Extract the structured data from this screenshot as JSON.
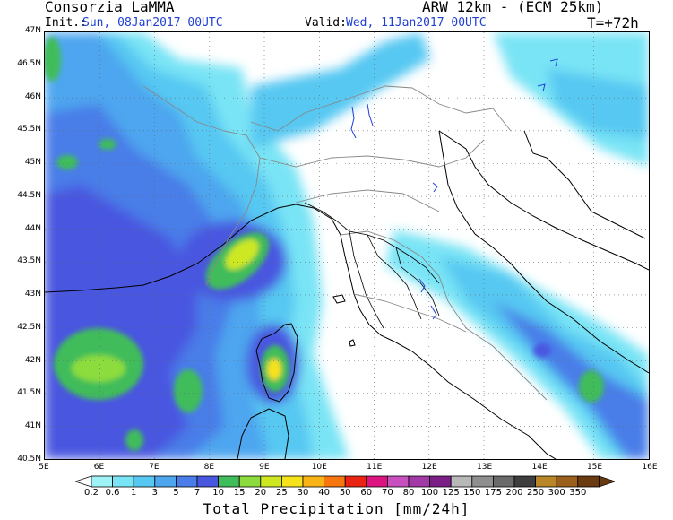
{
  "header": {
    "producer": "Consorzia LaMMA",
    "model": "ARW 12km - (ECM 25km)",
    "init_label": "Init.:",
    "init_value": "Sun, 08Jan2017 00UTC",
    "valid_label": "Valid:",
    "valid_value": "Wed, 11Jan2017 00UTC",
    "forecast_step": "T=+72h"
  },
  "map": {
    "lat_labels": [
      "47N",
      "46.5N",
      "46N",
      "45.5N",
      "45N",
      "44.5N",
      "44N",
      "43.5N",
      "43N",
      "42.5N",
      "42N",
      "41.5N",
      "41N",
      "40.5N"
    ],
    "lon_labels": [
      "5E",
      "6E",
      "7E",
      "8E",
      "9E",
      "10E",
      "11E",
      "12E",
      "13E",
      "14E",
      "15E",
      "16E"
    ],
    "lat_range": [
      40.5,
      47
    ],
    "lon_range": [
      5,
      16
    ],
    "grid": "dotted"
  },
  "colorbar": {
    "title": "Total Precipitation [mm/24h]",
    "labels": [
      "0.2",
      "0.6",
      "1",
      "3",
      "5",
      "7",
      "10",
      "15",
      "20",
      "25",
      "30",
      "40",
      "50",
      "60",
      "70",
      "80",
      "100",
      "125",
      "150",
      "175",
      "200",
      "250",
      "300",
      "350"
    ],
    "colors": [
      "#9ff2f5",
      "#79e4f5",
      "#56c8f2",
      "#4ea6ef",
      "#4a7de8",
      "#4857e0",
      "#3fbd5a",
      "#8ddc3e",
      "#cde820",
      "#f6e21a",
      "#f8b316",
      "#f7760f",
      "#ea2412",
      "#dd1480",
      "#c84fbe",
      "#a239a6",
      "#7b1f86",
      "#b8b8b8",
      "#8f8f8f",
      "#6a6a6a",
      "#3e3e3e",
      "#b88627",
      "#9a5f1a",
      "#6a3a10"
    ]
  }
}
